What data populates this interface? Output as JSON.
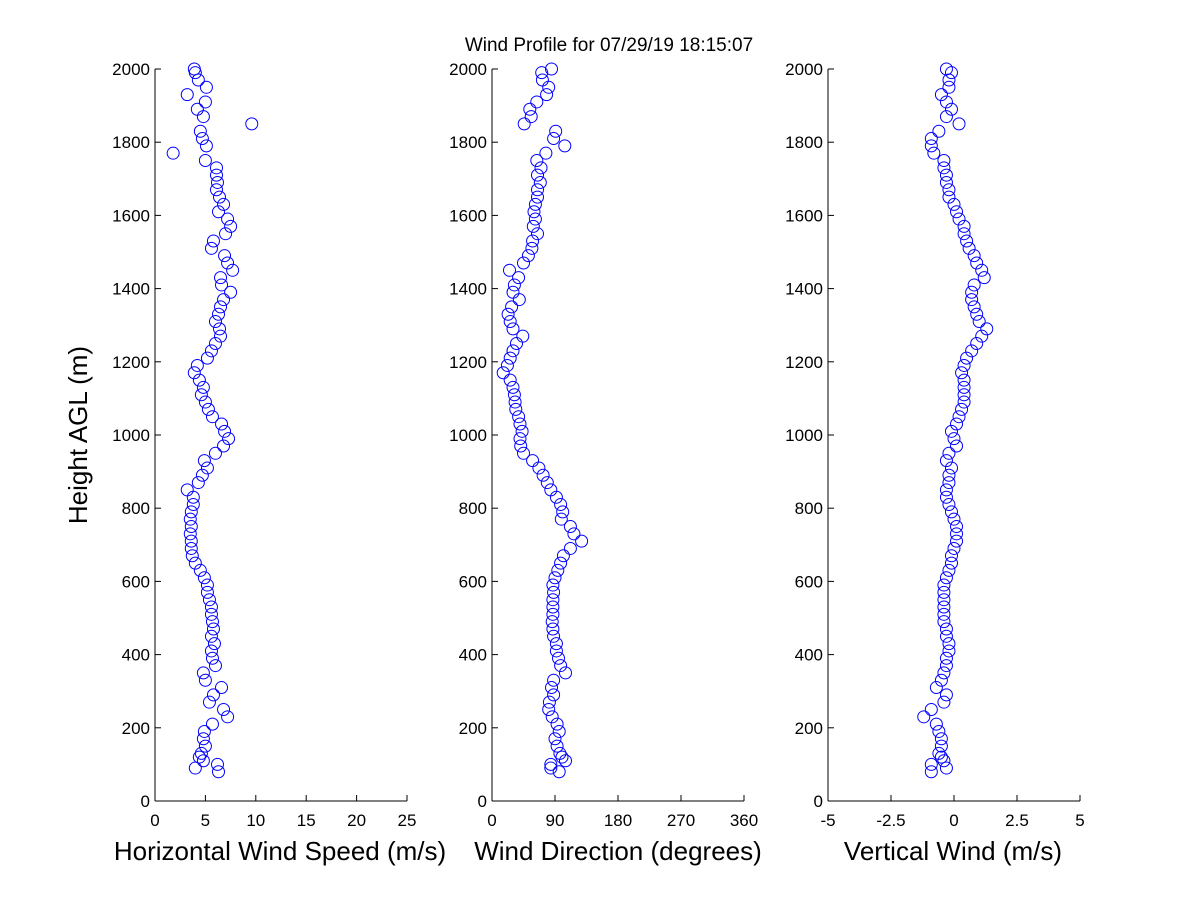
{
  "figure": {
    "title": "Wind Profile for  07/29/19 18:15:07",
    "marker_color": "#0000ff"
  },
  "chart_data": [
    {
      "type": "scatter",
      "name": "speed",
      "xlabel": "Horizontal Wind Speed (m/s)",
      "ylabel": "Height AGL (m)",
      "xlim": [
        0,
        25
      ],
      "ylim": [
        0,
        2000
      ],
      "xticks": [
        0,
        5,
        10,
        15,
        20,
        25
      ],
      "yticks": [
        0,
        200,
        400,
        600,
        800,
        1000,
        1200,
        1400,
        1600,
        1800,
        2000
      ],
      "heights": [
        80,
        90,
        100,
        110,
        120,
        130,
        150,
        170,
        190,
        210,
        230,
        250,
        270,
        290,
        310,
        330,
        350,
        370,
        390,
        410,
        430,
        450,
        470,
        490,
        510,
        530,
        550,
        570,
        590,
        610,
        630,
        650,
        670,
        690,
        710,
        730,
        750,
        770,
        790,
        810,
        830,
        850,
        870,
        890,
        910,
        930,
        950,
        970,
        990,
        1010,
        1030,
        1050,
        1070,
        1090,
        1110,
        1130,
        1150,
        1170,
        1190,
        1210,
        1230,
        1250,
        1270,
        1290,
        1310,
        1330,
        1350,
        1370,
        1390,
        1410,
        1430,
        1450,
        1470,
        1490,
        1510,
        1530,
        1550,
        1570,
        1590,
        1610,
        1630,
        1650,
        1670,
        1690,
        1710,
        1730,
        1750,
        1770,
        1790,
        1810,
        1830,
        1850,
        1870,
        1890,
        1910,
        1930,
        1950,
        1970,
        1990,
        2000
      ],
      "values": [
        6.3,
        4.0,
        6.2,
        4.8,
        4.4,
        4.6,
        5.0,
        4.8,
        4.9,
        5.7,
        7.2,
        6.8,
        5.4,
        5.8,
        6.6,
        5.0,
        4.8,
        6.0,
        5.7,
        5.6,
        5.9,
        5.6,
        5.8,
        5.7,
        5.6,
        5.6,
        5.4,
        5.2,
        5.2,
        4.9,
        4.5,
        4.0,
        3.7,
        3.6,
        3.6,
        3.5,
        3.6,
        3.5,
        3.6,
        3.8,
        3.8,
        3.2,
        4.3,
        4.7,
        5.2,
        4.9,
        6.0,
        6.8,
        7.3,
        6.9,
        6.6,
        5.7,
        5.3,
        5.0,
        4.6,
        4.8,
        4.4,
        3.9,
        4.2,
        5.2,
        5.6,
        6.0,
        6.5,
        6.4,
        6.0,
        6.3,
        6.5,
        6.8,
        7.5,
        6.6,
        6.5,
        7.7,
        7.2,
        6.9,
        5.6,
        5.8,
        7.0,
        7.5,
        7.2,
        6.3,
        6.8,
        6.4,
        6.1,
        6.2,
        6.1,
        6.1,
        5.0,
        1.8,
        5.1,
        4.7,
        4.5,
        9.6,
        4.8,
        4.2,
        5.0,
        3.2,
        5.1,
        4.3,
        4.0,
        3.9
      ]
    },
    {
      "type": "scatter",
      "name": "direction",
      "xlabel": "Wind Direction (degrees)",
      "xlim": [
        0,
        360
      ],
      "ylim": [
        0,
        2000
      ],
      "xticks": [
        0,
        90,
        180,
        270,
        360
      ],
      "yticks": [
        0,
        200,
        400,
        600,
        800,
        1000,
        1200,
        1400,
        1600,
        1800,
        2000
      ],
      "heights": [
        80,
        90,
        100,
        110,
        120,
        130,
        150,
        170,
        190,
        210,
        230,
        250,
        270,
        290,
        310,
        330,
        350,
        370,
        390,
        410,
        430,
        450,
        470,
        490,
        510,
        530,
        550,
        570,
        590,
        610,
        630,
        650,
        670,
        690,
        710,
        730,
        750,
        770,
        790,
        810,
        830,
        850,
        870,
        890,
        910,
        930,
        950,
        970,
        990,
        1010,
        1030,
        1050,
        1070,
        1090,
        1110,
        1130,
        1150,
        1170,
        1190,
        1210,
        1230,
        1250,
        1270,
        1290,
        1310,
        1330,
        1350,
        1370,
        1390,
        1410,
        1430,
        1450,
        1470,
        1490,
        1510,
        1530,
        1550,
        1570,
        1590,
        1610,
        1630,
        1650,
        1670,
        1690,
        1710,
        1730,
        1750,
        1770,
        1790,
        1810,
        1830,
        1850,
        1870,
        1890,
        1910,
        1930,
        1950,
        1970,
        1990,
        2000
      ],
      "values": [
        96,
        84,
        84,
        105,
        100,
        97,
        93,
        90,
        96,
        93,
        86,
        81,
        82,
        88,
        85,
        88,
        105,
        98,
        95,
        92,
        92,
        88,
        87,
        86,
        87,
        87,
        87,
        88,
        87,
        90,
        94,
        98,
        102,
        112,
        128,
        117,
        112,
        99,
        101,
        98,
        92,
        84,
        79,
        73,
        67,
        58,
        45,
        41,
        40,
        43,
        40,
        38,
        34,
        33,
        32,
        30,
        26,
        16,
        22,
        26,
        30,
        35,
        44,
        30,
        26,
        23,
        28,
        39,
        30,
        32,
        38,
        25,
        45,
        52,
        57,
        58,
        65,
        59,
        62,
        60,
        62,
        65,
        65,
        69,
        65,
        70,
        64,
        77,
        104,
        88,
        91,
        46,
        56,
        54,
        64,
        78,
        81,
        72,
        71,
        85
      ]
    },
    {
      "type": "scatter",
      "name": "vertical",
      "xlabel": "Vertical Wind (m/s)",
      "xlim": [
        -5,
        5
      ],
      "ylim": [
        0,
        2000
      ],
      "xticks": [
        -5,
        -2.5,
        0,
        2.5,
        5
      ],
      "xtick_labels": [
        "-5",
        "-2.5",
        "0",
        "2.5",
        "5"
      ],
      "yticks": [
        0,
        200,
        400,
        600,
        800,
        1000,
        1200,
        1400,
        1600,
        1800,
        2000
      ],
      "heights": [
        80,
        90,
        100,
        110,
        120,
        130,
        150,
        170,
        190,
        210,
        230,
        250,
        270,
        290,
        310,
        330,
        350,
        370,
        390,
        410,
        430,
        450,
        470,
        490,
        510,
        530,
        550,
        570,
        590,
        610,
        630,
        650,
        670,
        690,
        710,
        730,
        750,
        770,
        790,
        810,
        830,
        850,
        870,
        890,
        910,
        930,
        950,
        970,
        990,
        1010,
        1030,
        1050,
        1070,
        1090,
        1110,
        1130,
        1150,
        1170,
        1190,
        1210,
        1230,
        1250,
        1270,
        1290,
        1310,
        1330,
        1350,
        1370,
        1390,
        1410,
        1430,
        1450,
        1470,
        1490,
        1510,
        1530,
        1550,
        1570,
        1590,
        1610,
        1630,
        1650,
        1670,
        1690,
        1710,
        1730,
        1750,
        1770,
        1790,
        1810,
        1830,
        1850,
        1870,
        1890,
        1910,
        1930,
        1950,
        1970,
        1990,
        2000
      ],
      "values": [
        -0.9,
        -0.3,
        -0.9,
        -0.4,
        -0.5,
        -0.6,
        -0.5,
        -0.5,
        -0.6,
        -0.7,
        -1.2,
        -0.9,
        -0.4,
        -0.3,
        -0.7,
        -0.5,
        -0.4,
        -0.3,
        -0.3,
        -0.2,
        -0.2,
        -0.3,
        -0.3,
        -0.4,
        -0.4,
        -0.4,
        -0.4,
        -0.4,
        -0.4,
        -0.3,
        -0.2,
        -0.1,
        -0.1,
        0.0,
        0.1,
        0.1,
        0.1,
        0.0,
        -0.1,
        -0.2,
        -0.3,
        -0.3,
        -0.2,
        -0.2,
        -0.1,
        -0.3,
        -0.2,
        0.1,
        0.0,
        -0.1,
        0.1,
        0.2,
        0.3,
        0.4,
        0.4,
        0.4,
        0.4,
        0.3,
        0.4,
        0.5,
        0.7,
        0.9,
        1.1,
        1.3,
        1.0,
        0.9,
        0.8,
        0.7,
        0.7,
        0.8,
        1.2,
        1.1,
        0.9,
        0.8,
        0.6,
        0.5,
        0.4,
        0.4,
        0.2,
        0.1,
        0.0,
        -0.2,
        -0.2,
        -0.3,
        -0.3,
        -0.4,
        -0.4,
        -0.8,
        -0.9,
        -0.9,
        -0.6,
        0.2,
        -0.3,
        -0.1,
        -0.3,
        -0.5,
        -0.2,
        -0.2,
        -0.1,
        -0.3
      ]
    }
  ]
}
